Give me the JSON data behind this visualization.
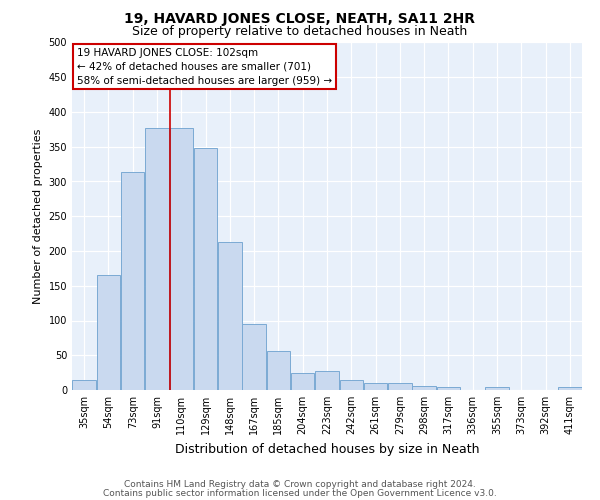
{
  "title": "19, HAVARD JONES CLOSE, NEATH, SA11 2HR",
  "subtitle": "Size of property relative to detached houses in Neath",
  "xlabel": "Distribution of detached houses by size in Neath",
  "ylabel": "Number of detached properties",
  "categories": [
    "35sqm",
    "54sqm",
    "73sqm",
    "91sqm",
    "110sqm",
    "129sqm",
    "148sqm",
    "167sqm",
    "185sqm",
    "204sqm",
    "223sqm",
    "242sqm",
    "261sqm",
    "279sqm",
    "298sqm",
    "317sqm",
    "336sqm",
    "355sqm",
    "373sqm",
    "392sqm",
    "411sqm"
  ],
  "values": [
    15,
    165,
    313,
    377,
    377,
    348,
    213,
    95,
    56,
    25,
    28,
    15,
    10,
    10,
    6,
    4,
    0,
    4,
    0,
    0,
    4
  ],
  "bar_color": "#c9d9ef",
  "bar_edge_color": "#7baad4",
  "bg_color": "#e8f0fa",
  "grid_color": "#ffffff",
  "annotation_box_text": "19 HAVARD JONES CLOSE: 102sqm\n← 42% of detached houses are smaller (701)\n58% of semi-detached houses are larger (959) →",
  "annotation_box_color": "#ffffff",
  "annotation_box_edge_color": "#cc0000",
  "vline_color": "#cc0000",
  "vline_pos": 3.55,
  "ylim": [
    0,
    500
  ],
  "yticks": [
    0,
    50,
    100,
    150,
    200,
    250,
    300,
    350,
    400,
    450,
    500
  ],
  "footer_line1": "Contains HM Land Registry data © Crown copyright and database right 2024.",
  "footer_line2": "Contains public sector information licensed under the Open Government Licence v3.0.",
  "title_fontsize": 10,
  "subtitle_fontsize": 9,
  "xlabel_fontsize": 9,
  "ylabel_fontsize": 8,
  "tick_fontsize": 7,
  "ann_fontsize": 7.5,
  "footer_fontsize": 6.5
}
